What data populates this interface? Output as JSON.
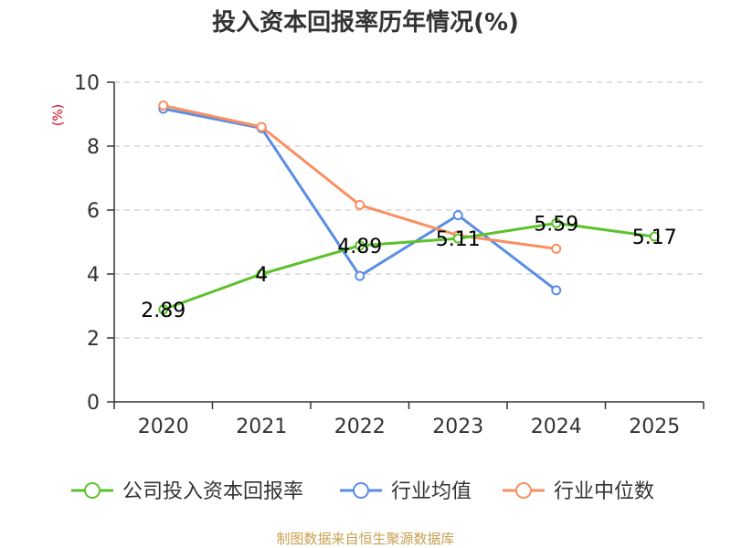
{
  "chart_data": {
    "type": "line",
    "title": "投入资本回报率历年情况(%)",
    "ylabel": "(%)",
    "xlabel": "",
    "ylim": [
      0,
      10
    ],
    "yticks": [
      0,
      2,
      4,
      6,
      8,
      10
    ],
    "categories": [
      "2020",
      "2021",
      "2022",
      "2023",
      "2024",
      "2025"
    ],
    "grid": true,
    "legend_position": "bottom",
    "series": [
      {
        "name": "公司投入资本回报率",
        "color": "#5cc22b",
        "values": [
          2.89,
          4.0,
          4.89,
          5.11,
          5.59,
          5.17
        ],
        "labels": [
          "2.89",
          "4",
          "4.89",
          "5.11",
          "5.59",
          "5.17"
        ]
      },
      {
        "name": "行业均值",
        "color": "#5a8de5",
        "values": [
          9.17,
          8.56,
          3.94,
          5.84,
          3.49,
          null
        ]
      },
      {
        "name": "行业中位数",
        "color": "#f89061",
        "values": [
          9.27,
          8.6,
          6.16,
          5.21,
          4.79,
          null
        ]
      }
    ],
    "source": "制图数据来自恒生聚源数据库"
  }
}
